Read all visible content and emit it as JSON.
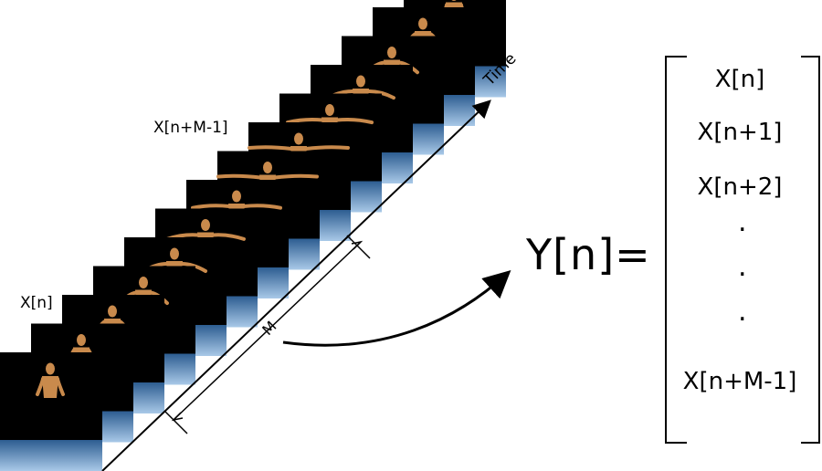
{
  "labels": {
    "first_frame": "X[n]",
    "last_frame": "X[n+M-1]",
    "time_axis": "Time",
    "window_length": "M",
    "output": "Y[n]="
  },
  "vector": {
    "entries": [
      "X[n]",
      "X[n+1]",
      "X[n+2]",
      "X[n+M-1]"
    ],
    "ellipsis": [
      ".",
      ".",
      "."
    ]
  },
  "frames": {
    "count": 14,
    "arm_raise_levels": [
      0.0,
      0.05,
      0.15,
      0.3,
      0.5,
      0.7,
      0.85,
      1.0,
      1.0,
      0.8,
      0.55,
      0.35,
      0.15,
      0.0
    ]
  },
  "colors": {
    "frame_background": "#000000",
    "floor_light": "#a9c9e8",
    "floor_dark": "#3d6fa6",
    "skin": "#c98a4c",
    "line": "#000000"
  }
}
